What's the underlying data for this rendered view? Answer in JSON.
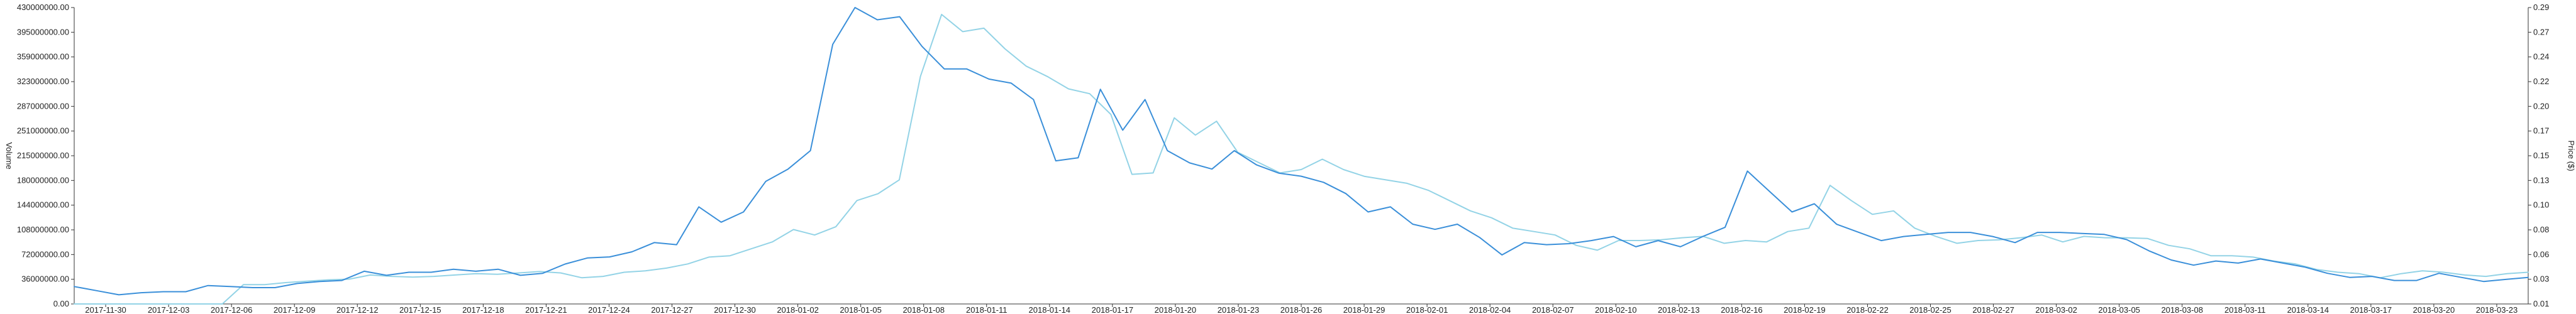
{
  "chart_data": {
    "type": "line",
    "title": "",
    "xlabel": "",
    "ylabel_left": "Volume",
    "ylabel_right": "Price ($)",
    "grid": false,
    "legend": "none",
    "x_ticks": [
      "2017-11-30",
      "2017-12-03",
      "2017-12-06",
      "2017-12-09",
      "2017-12-12",
      "2017-12-15",
      "2017-12-18",
      "2017-12-21",
      "2017-12-24",
      "2017-12-27",
      "2017-12-30",
      "2018-01-02",
      "2018-01-05",
      "2018-01-08",
      "2018-01-11",
      "2018-01-14",
      "2018-01-17",
      "2018-01-20",
      "2018-01-23",
      "2018-01-26",
      "2018-01-29",
      "2018-02-01",
      "2018-02-04",
      "2018-02-07",
      "2018-02-10",
      "2018-02-13",
      "2018-02-16",
      "2018-02-19",
      "2018-02-22",
      "2018-02-25",
      "2018-02-27",
      "2018-03-02",
      "2018-03-05",
      "2018-03-08",
      "2018-03-11",
      "2018-03-14",
      "2018-03-17",
      "2018-03-20",
      "2018-03-23"
    ],
    "y_left_ticks": [
      "0.00",
      "36000000.00",
      "72000000.00",
      "108000000.00",
      "144000000.00",
      "180000000.00",
      "215000000.00",
      "251000000.00",
      "287000000.00",
      "323000000.00",
      "359000000.00",
      "395000000.00",
      "430000000.00"
    ],
    "y_left_range": [
      0,
      430000000
    ],
    "y_right_ticks": [
      "0.01",
      "0.03",
      "0.06",
      "0.08",
      "0.10",
      "0.13",
      "0.15",
      "0.17",
      "0.20",
      "0.22",
      "0.24",
      "0.27",
      "0.29"
    ],
    "y_right_range": [
      0.0,
      0.29
    ],
    "series": [
      {
        "axis": "right",
        "color": "#3a8fd9",
        "values": [
          0.017,
          0.013,
          0.009,
          0.011,
          0.012,
          0.012,
          0.018,
          0.017,
          0.016,
          0.016,
          0.02,
          0.022,
          0.023,
          0.032,
          0.028,
          0.031,
          0.031,
          0.034,
          0.032,
          0.034,
          0.028,
          0.03,
          0.039,
          0.045,
          0.046,
          0.051,
          0.06,
          0.058,
          0.095,
          0.08,
          0.09,
          0.12,
          0.132,
          0.15,
          0.254,
          0.29,
          0.278,
          0.281,
          0.252,
          0.23,
          0.23,
          0.22,
          0.216,
          0.2,
          0.14,
          0.143,
          0.21,
          0.17,
          0.2,
          0.15,
          0.138,
          0.132,
          0.15,
          0.136,
          0.128,
          0.125,
          0.119,
          0.108,
          0.09,
          0.095,
          0.078,
          0.073,
          0.078,
          0.065,
          0.048,
          0.06,
          0.058,
          0.059,
          0.062,
          0.066,
          0.056,
          0.062,
          0.056,
          0.066,
          0.075,
          0.13,
          0.11,
          0.09,
          0.098,
          0.078,
          0.07,
          0.062,
          0.066,
          0.068,
          0.07,
          0.07,
          0.066,
          0.06,
          0.07,
          0.07,
          0.069,
          0.068,
          0.063,
          0.052,
          0.043,
          0.038,
          0.042,
          0.04,
          0.044,
          0.04,
          0.036,
          0.03,
          0.026,
          0.027,
          0.023,
          0.023,
          0.03,
          0.026,
          0.022,
          0.024,
          0.026
        ]
      },
      {
        "axis": "left",
        "color": "#93d3e6",
        "values": [
          0,
          0,
          0,
          0,
          0,
          0,
          0,
          0,
          28000000,
          28000000,
          31000000,
          33000000,
          35000000,
          36000000,
          42000000,
          40000000,
          39000000,
          40000000,
          42000000,
          44000000,
          43000000,
          45000000,
          47000000,
          45000000,
          38000000,
          40000000,
          46000000,
          48000000,
          52000000,
          58000000,
          68000000,
          70000000,
          80000000,
          90000000,
          108000000,
          100000000,
          112000000,
          150000000,
          160000000,
          180000000,
          330000000,
          420000000,
          395000000,
          400000000,
          370000000,
          345000000,
          330000000,
          312000000,
          305000000,
          275000000,
          188000000,
          190000000,
          270000000,
          245000000,
          265000000,
          220000000,
          205000000,
          190000000,
          195000000,
          210000000,
          195000000,
          185000000,
          180000000,
          175000000,
          165000000,
          150000000,
          135000000,
          125000000,
          110000000,
          105000000,
          100000000,
          85000000,
          78000000,
          92000000,
          92000000,
          93000000,
          96000000,
          98000000,
          88000000,
          92000000,
          90000000,
          105000000,
          110000000,
          172000000,
          150000000,
          130000000,
          135000000,
          110000000,
          98000000,
          88000000,
          92000000,
          93000000,
          96000000,
          100000000,
          90000000,
          98000000,
          96000000,
          96000000,
          95000000,
          85000000,
          80000000,
          70000000,
          70000000,
          68000000,
          62000000,
          58000000,
          50000000,
          46000000,
          44000000,
          38000000,
          44000000,
          48000000,
          46000000,
          42000000,
          40000000,
          44000000,
          46000000
        ]
      }
    ]
  }
}
